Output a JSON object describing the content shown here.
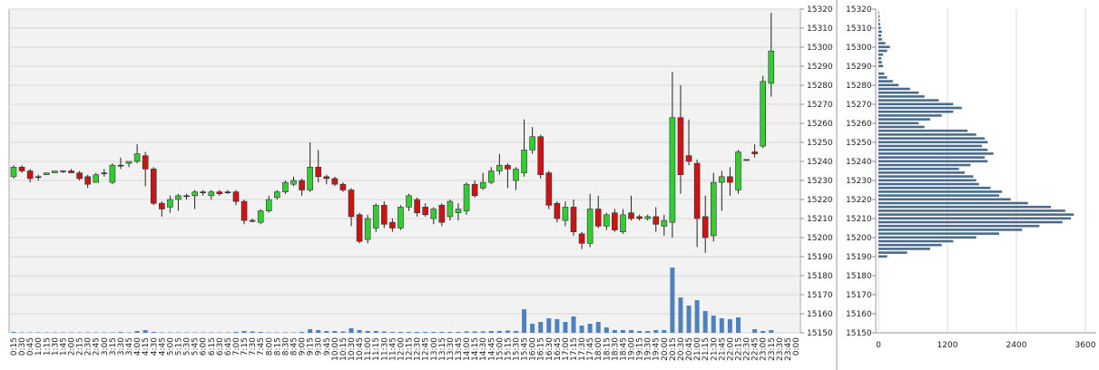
{
  "chart_data": [
    {
      "type": "candlestick",
      "categories": [
        "0:15",
        "0:30",
        "0:45",
        "1:00",
        "1:15",
        "1:30",
        "1:45",
        "2:00",
        "2:15",
        "2:30",
        "2:45",
        "3:00",
        "3:15",
        "3:30",
        "3:45",
        "4:00",
        "4:15",
        "4:30",
        "4:45",
        "5:00",
        "5:15",
        "5:30",
        "5:45",
        "6:00",
        "6:15",
        "6:30",
        "6:45",
        "7:00",
        "7:15",
        "7:30",
        "7:45",
        "8:00",
        "8:15",
        "8:30",
        "8:45",
        "9:00",
        "9:15",
        "9:30",
        "9:45",
        "10:00",
        "10:15",
        "10:30",
        "10:45",
        "11:00",
        "11:15",
        "11:30",
        "11:45",
        "12:00",
        "12:15",
        "12:30",
        "12:45",
        "13:00",
        "13:15",
        "13:30",
        "13:45",
        "14:00",
        "14:15",
        "14:30",
        "14:45",
        "15:00",
        "15:15",
        "15:30",
        "15:45",
        "16:00",
        "16:15",
        "16:30",
        "16:45",
        "17:00",
        "17:15",
        "17:30",
        "17:45",
        "18:00",
        "18:15",
        "18:30",
        "18:45",
        "19:00",
        "19:15",
        "19:30",
        "19:45",
        "20:00",
        "20:15",
        "20:30",
        "20:45",
        "21:00",
        "21:15",
        "21:30",
        "21:45",
        "22:00",
        "22:15",
        "22:30",
        "22:45",
        "23:00",
        "23:15",
        "23:30",
        "23:45",
        "0:00"
      ],
      "open": [
        15232,
        15237,
        15235,
        15232,
        15233,
        15234,
        15235,
        15235,
        15234,
        15232,
        15229,
        15234,
        15229,
        15238,
        15239,
        15240,
        15243,
        15236,
        15218,
        15216,
        15220,
        15222,
        15222,
        15224,
        15222,
        15224,
        15224,
        15224,
        15219,
        15209,
        15208,
        15214,
        15221,
        15224,
        15228,
        15230,
        15225,
        15237,
        15232,
        15231,
        15228,
        15225,
        15212,
        15199,
        15205,
        15217,
        15208,
        15205,
        15216,
        15220,
        15216,
        15210,
        15217,
        15211,
        15213,
        15214,
        15228,
        15226,
        15229,
        15235,
        15238,
        15230,
        15234,
        15246,
        15253,
        15234,
        15218,
        15209,
        15216,
        15202,
        15197,
        15215,
        15206,
        15213,
        15203,
        15213,
        15211,
        15210,
        15211,
        15206,
        15208,
        15263,
        15243,
        15239,
        15211,
        15201,
        15229,
        15232,
        15225,
        15241,
        15245,
        15248,
        15281,
        null,
        null,
        null
      ],
      "high": [
        15238,
        15238,
        15236,
        15233,
        15234,
        15235,
        15235,
        15236,
        15235,
        15233,
        15234,
        15236,
        15239,
        15242,
        15240,
        15249,
        15245,
        15237,
        15219,
        15222,
        15223,
        15223,
        15225,
        15225,
        15225,
        15225,
        15225,
        15225,
        15220,
        15210,
        15215,
        15222,
        15225,
        15230,
        15232,
        15231,
        15250,
        15246,
        15233,
        15232,
        15229,
        15226,
        15213,
        15212,
        15218,
        15219,
        15210,
        15217,
        15223,
        15221,
        15218,
        15216,
        15218,
        15220,
        15218,
        15229,
        15230,
        15234,
        15237,
        15244,
        15239,
        15237,
        15262,
        15258,
        15254,
        15235,
        15219,
        15219,
        15220,
        15203,
        15223,
        15222,
        15213,
        15215,
        15215,
        15222,
        15212,
        15212,
        15216,
        15212,
        15287,
        15280,
        15262,
        15241,
        15222,
        15234,
        15235,
        15237,
        15246,
        15241,
        15249,
        15285,
        15318,
        null,
        null,
        null
      ],
      "low": [
        15231,
        15234,
        15229,
        15230,
        15233,
        15234,
        15234,
        15234,
        15230,
        15226,
        15229,
        15232,
        15228,
        15236,
        15237,
        15239,
        15227,
        15217,
        15211,
        15213,
        15214,
        15220,
        15215,
        15222,
        15220,
        15222,
        15223,
        15217,
        15207,
        15208,
        15207,
        15213,
        15220,
        15223,
        15227,
        15222,
        15224,
        15229,
        15228,
        15227,
        15224,
        15206,
        15197,
        15197,
        15203,
        15205,
        15203,
        15204,
        15214,
        15211,
        15211,
        15207,
        15206,
        15209,
        15209,
        15212,
        15221,
        15225,
        15228,
        15233,
        15226,
        15225,
        15232,
        15244,
        15231,
        15215,
        15208,
        15206,
        15201,
        15194,
        15195,
        15205,
        15204,
        15203,
        15202,
        15209,
        15209,
        15209,
        15203,
        15201,
        15200,
        15223,
        15238,
        15195,
        15192,
        15198,
        15214,
        15222,
        15223,
        15241,
        15242,
        15247,
        15274,
        null,
        null,
        null
      ],
      "close": [
        15237,
        15235,
        15231,
        15232,
        15234,
        15235,
        15235,
        15234,
        15231,
        15228,
        15233,
        15234,
        15238,
        15238,
        15240,
        15244,
        15236,
        15218,
        15215,
        15220,
        15222,
        15222,
        15224,
        15224,
        15224,
        15223,
        15224,
        15219,
        15209,
        15209,
        15214,
        15220,
        15224,
        15229,
        15230,
        15225,
        15237,
        15232,
        15231,
        15228,
        15225,
        15211,
        15198,
        15210,
        15217,
        15207,
        15205,
        15216,
        15222,
        15213,
        15212,
        15215,
        15208,
        15219,
        15215,
        15228,
        15222,
        15229,
        15235,
        15238,
        15236,
        15236,
        15246,
        15253,
        15233,
        15217,
        15210,
        15216,
        15203,
        15197,
        15215,
        15206,
        15212,
        15204,
        15212,
        15210,
        15210,
        15211,
        15207,
        15209,
        15263,
        15233,
        15240,
        15210,
        15200,
        15229,
        15232,
        15229,
        15245,
        15241,
        15244,
        15282,
        15298,
        null,
        null,
        null
      ],
      "volume": [
        10,
        5,
        5,
        5,
        5,
        5,
        5,
        5,
        5,
        5,
        5,
        5,
        5,
        10,
        5,
        20,
        30,
        10,
        5,
        5,
        5,
        5,
        5,
        5,
        5,
        5,
        5,
        10,
        20,
        15,
        10,
        5,
        5,
        5,
        5,
        10,
        40,
        30,
        20,
        20,
        15,
        50,
        30,
        20,
        20,
        15,
        10,
        10,
        10,
        10,
        10,
        10,
        10,
        10,
        10,
        15,
        15,
        15,
        20,
        20,
        25,
        20,
        260,
        100,
        120,
        160,
        150,
        120,
        180,
        80,
        100,
        120,
        60,
        30,
        30,
        30,
        20,
        20,
        30,
        30,
        720,
        390,
        300,
        360,
        240,
        190,
        160,
        150,
        170,
        0,
        40,
        20,
        30,
        null,
        null,
        null
      ],
      "ylim": [
        15150,
        15320
      ],
      "yticks": [
        15150,
        15160,
        15170,
        15180,
        15190,
        15200,
        15210,
        15220,
        15230,
        15240,
        15250,
        15260,
        15270,
        15280,
        15290,
        15300,
        15310,
        15320
      ],
      "grid": true,
      "up_color": "#33cc33",
      "down_color": "#cc1414",
      "volume_color": "#4f81bd"
    },
    {
      "type": "barh",
      "y": [
        15190,
        15192,
        15194,
        15196,
        15198,
        15200,
        15202,
        15204,
        15206,
        15208,
        15210,
        15212,
        15214,
        15216,
        15218,
        15220,
        15222,
        15224,
        15226,
        15228,
        15230,
        15232,
        15234,
        15236,
        15238,
        15240,
        15242,
        15244,
        15246,
        15248,
        15250,
        15252,
        15254,
        15256,
        15258,
        15260,
        15262,
        15264,
        15266,
        15268,
        15270,
        15272,
        15274,
        15276,
        15278,
        15280,
        15282,
        15284,
        15286,
        15288,
        15290,
        15292,
        15294,
        15296,
        15298,
        15300,
        15302,
        15304,
        15306,
        15308,
        15310,
        15312,
        15314,
        15316,
        15318
      ],
      "values": [
        150,
        500,
        900,
        1100,
        1300,
        1700,
        2100,
        2500,
        2800,
        3200,
        3350,
        3400,
        3250,
        3000,
        2600,
        2300,
        2100,
        2150,
        1950,
        1750,
        1700,
        1650,
        1500,
        1400,
        1600,
        1900,
        1850,
        2000,
        1900,
        1800,
        1900,
        1850,
        1700,
        1550,
        800,
        700,
        900,
        1100,
        1300,
        1450,
        1300,
        1050,
        800,
        700,
        550,
        350,
        250,
        150,
        100,
        0,
        80,
        60,
        50,
        80,
        150,
        200,
        120,
        60,
        50,
        60,
        40,
        30,
        20,
        20,
        10
      ],
      "ylim": [
        15150,
        15320
      ],
      "yticks": [
        15150,
        15160,
        15170,
        15180,
        15190,
        15200,
        15210,
        15220,
        15230,
        15240,
        15250,
        15260,
        15270,
        15280,
        15290,
        15300,
        15310,
        15320
      ],
      "xlim": [
        0,
        3600
      ],
      "xticks": [
        0,
        1200,
        2400,
        3600
      ],
      "grid": true,
      "color": "#4a6b8a"
    }
  ]
}
